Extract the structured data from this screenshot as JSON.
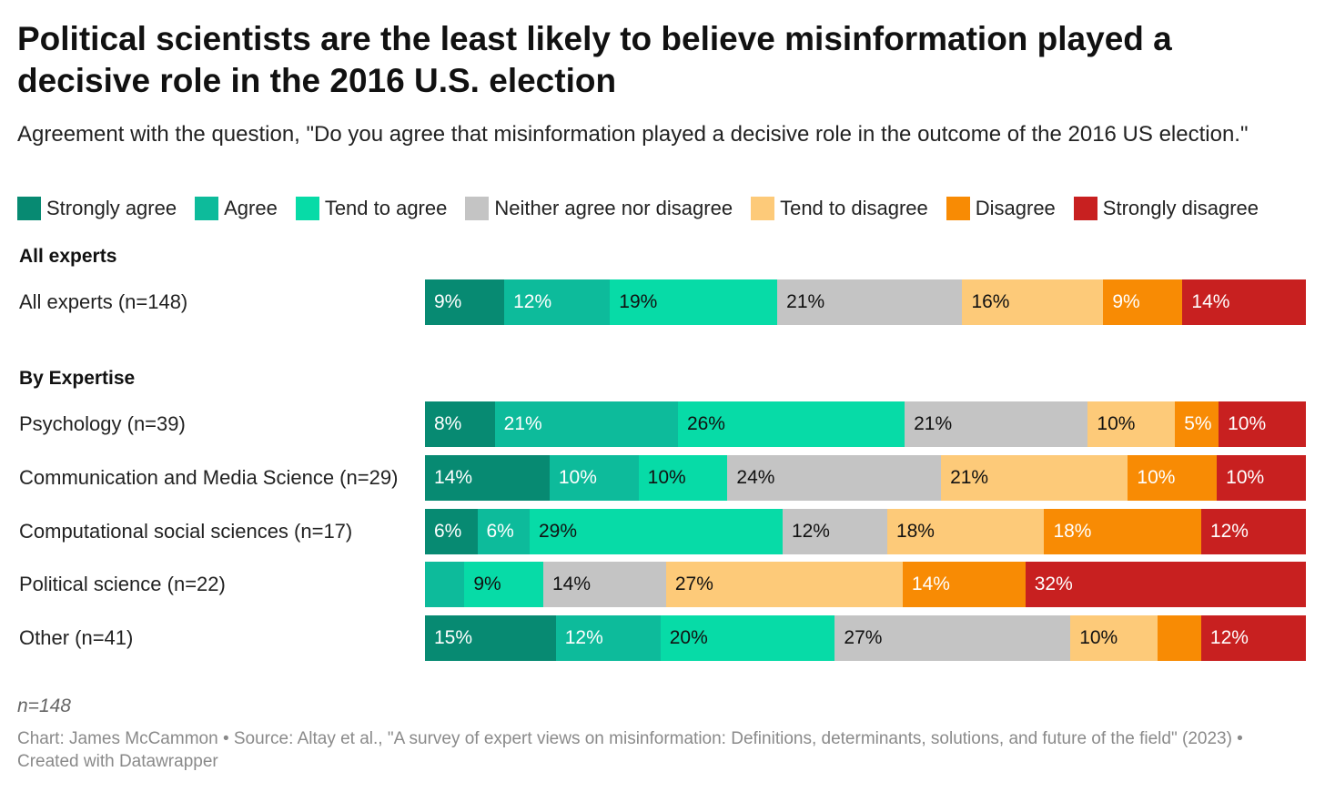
{
  "title": "Political scientists are the least likely to believe misinformation played a decisive role in the 2016 U.S. election",
  "subtitle": "Agreement with the question, \"Do you agree that misinformation played a decisive role in the outcome of the 2016 US election.\"",
  "note": "n=148",
  "footer": "Chart: James McCammon • Source: Altay et al., \"A survey of expert views on misinformation: Definitions, determinants, solutions, and future of the field\" (2023) • Created with Datawrapper",
  "colors": {
    "strongly_agree": "#078a72",
    "agree": "#0dbb9b",
    "tend_to_agree": "#07dba7",
    "neither": "#c4c4c4",
    "tend_to_disagree": "#fdca79",
    "disagree": "#f88b04",
    "strongly_disagree": "#c82020"
  },
  "chart_data": {
    "type": "bar",
    "orientation": "horizontal",
    "stacked": true,
    "unit": "%",
    "legend_position": "top",
    "series": [
      {
        "name": "Strongly agree",
        "color": "#078a72",
        "label_color": "#ffffff"
      },
      {
        "name": "Agree",
        "color": "#0dbb9b",
        "label_color": "#ffffff"
      },
      {
        "name": "Tend to agree",
        "color": "#07dba7",
        "label_color": "#111111"
      },
      {
        "name": "Neither agree nor disagree",
        "color": "#c4c4c4",
        "label_color": "#111111"
      },
      {
        "name": "Tend to disagree",
        "color": "#fdca79",
        "label_color": "#111111"
      },
      {
        "name": "Disagree",
        "color": "#f88b04",
        "label_color": "#ffffff"
      },
      {
        "name": "Strongly disagree",
        "color": "#c82020",
        "label_color": "#ffffff"
      }
    ],
    "groups": [
      {
        "label": "All experts",
        "rows": [
          {
            "label": "All experts (n=148)",
            "values": [
              9,
              12,
              19,
              21,
              16,
              9,
              14
            ],
            "labels": [
              "9%",
              "12%",
              "19%",
              "21%",
              "16%",
              "9%",
              "14%"
            ]
          }
        ]
      },
      {
        "label": "By Expertise",
        "rows": [
          {
            "label": "Psychology (n=39)",
            "values": [
              8,
              21,
              26,
              21,
              10,
              5,
              10
            ],
            "labels": [
              "8%",
              "21%",
              "26%",
              "21%",
              "10%",
              "5%",
              "10%"
            ]
          },
          {
            "label": "Communication and Media Science (n=29)",
            "values": [
              14,
              10,
              10,
              24,
              21,
              10,
              10
            ],
            "labels": [
              "14%",
              "10%",
              "10%",
              "24%",
              "21%",
              "10%",
              "10%"
            ]
          },
          {
            "label": "Computational social sciences (n=17)",
            "values": [
              6,
              6,
              29,
              12,
              18,
              18,
              12
            ],
            "labels": [
              "6%",
              "6%",
              "29%",
              "12%",
              "18%",
              "18%",
              "12%"
            ]
          },
          {
            "label": "Political science (n=22)",
            "values": [
              0,
              4.5,
              9,
              14,
              27,
              14,
              32
            ],
            "labels": [
              "",
              "",
              "9%",
              "14%",
              "27%",
              "14%",
              "32%"
            ]
          },
          {
            "label": "Other (n=41)",
            "values": [
              15,
              12,
              20,
              27,
              10,
              5,
              12
            ],
            "labels": [
              "15%",
              "12%",
              "20%",
              "27%",
              "10%",
              "",
              "12%"
            ]
          }
        ]
      }
    ]
  }
}
